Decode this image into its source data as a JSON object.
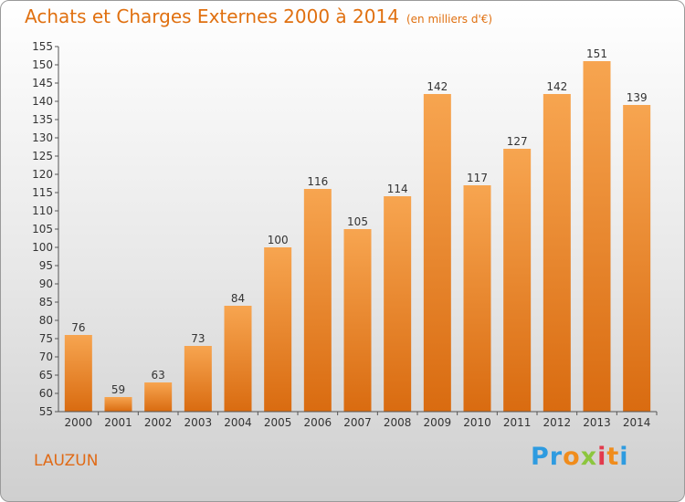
{
  "title": "Achats et Charges Externes 2000 à 2014",
  "subtitle": "(en milliers d'€)",
  "commune": "LAUZUN",
  "logo": {
    "letters": [
      "P",
      "r",
      "o",
      "x",
      "i",
      "t",
      "i"
    ],
    "colors": [
      "#2e9be0",
      "#2e9be0",
      "#f08c1c",
      "#8cc63e",
      "#e23a4c",
      "#f08c1c",
      "#2e9be0"
    ]
  },
  "colors": {
    "bar_light": "#f7a550",
    "bar_dark": "#d96b10",
    "title": "#e07010"
  },
  "chart_data": {
    "type": "bar",
    "categories": [
      "2000",
      "2001",
      "2002",
      "2003",
      "2004",
      "2005",
      "2006",
      "2007",
      "2008",
      "2009",
      "2010",
      "2011",
      "2012",
      "2013",
      "2014"
    ],
    "values": [
      76,
      59,
      63,
      73,
      84,
      100,
      116,
      105,
      114,
      142,
      117,
      127,
      142,
      151,
      139
    ],
    "ylim": [
      55,
      155
    ],
    "yticks": [
      55,
      60,
      65,
      70,
      75,
      80,
      85,
      90,
      95,
      100,
      105,
      110,
      115,
      120,
      125,
      130,
      135,
      140,
      145,
      150,
      155
    ],
    "grid": false
  }
}
